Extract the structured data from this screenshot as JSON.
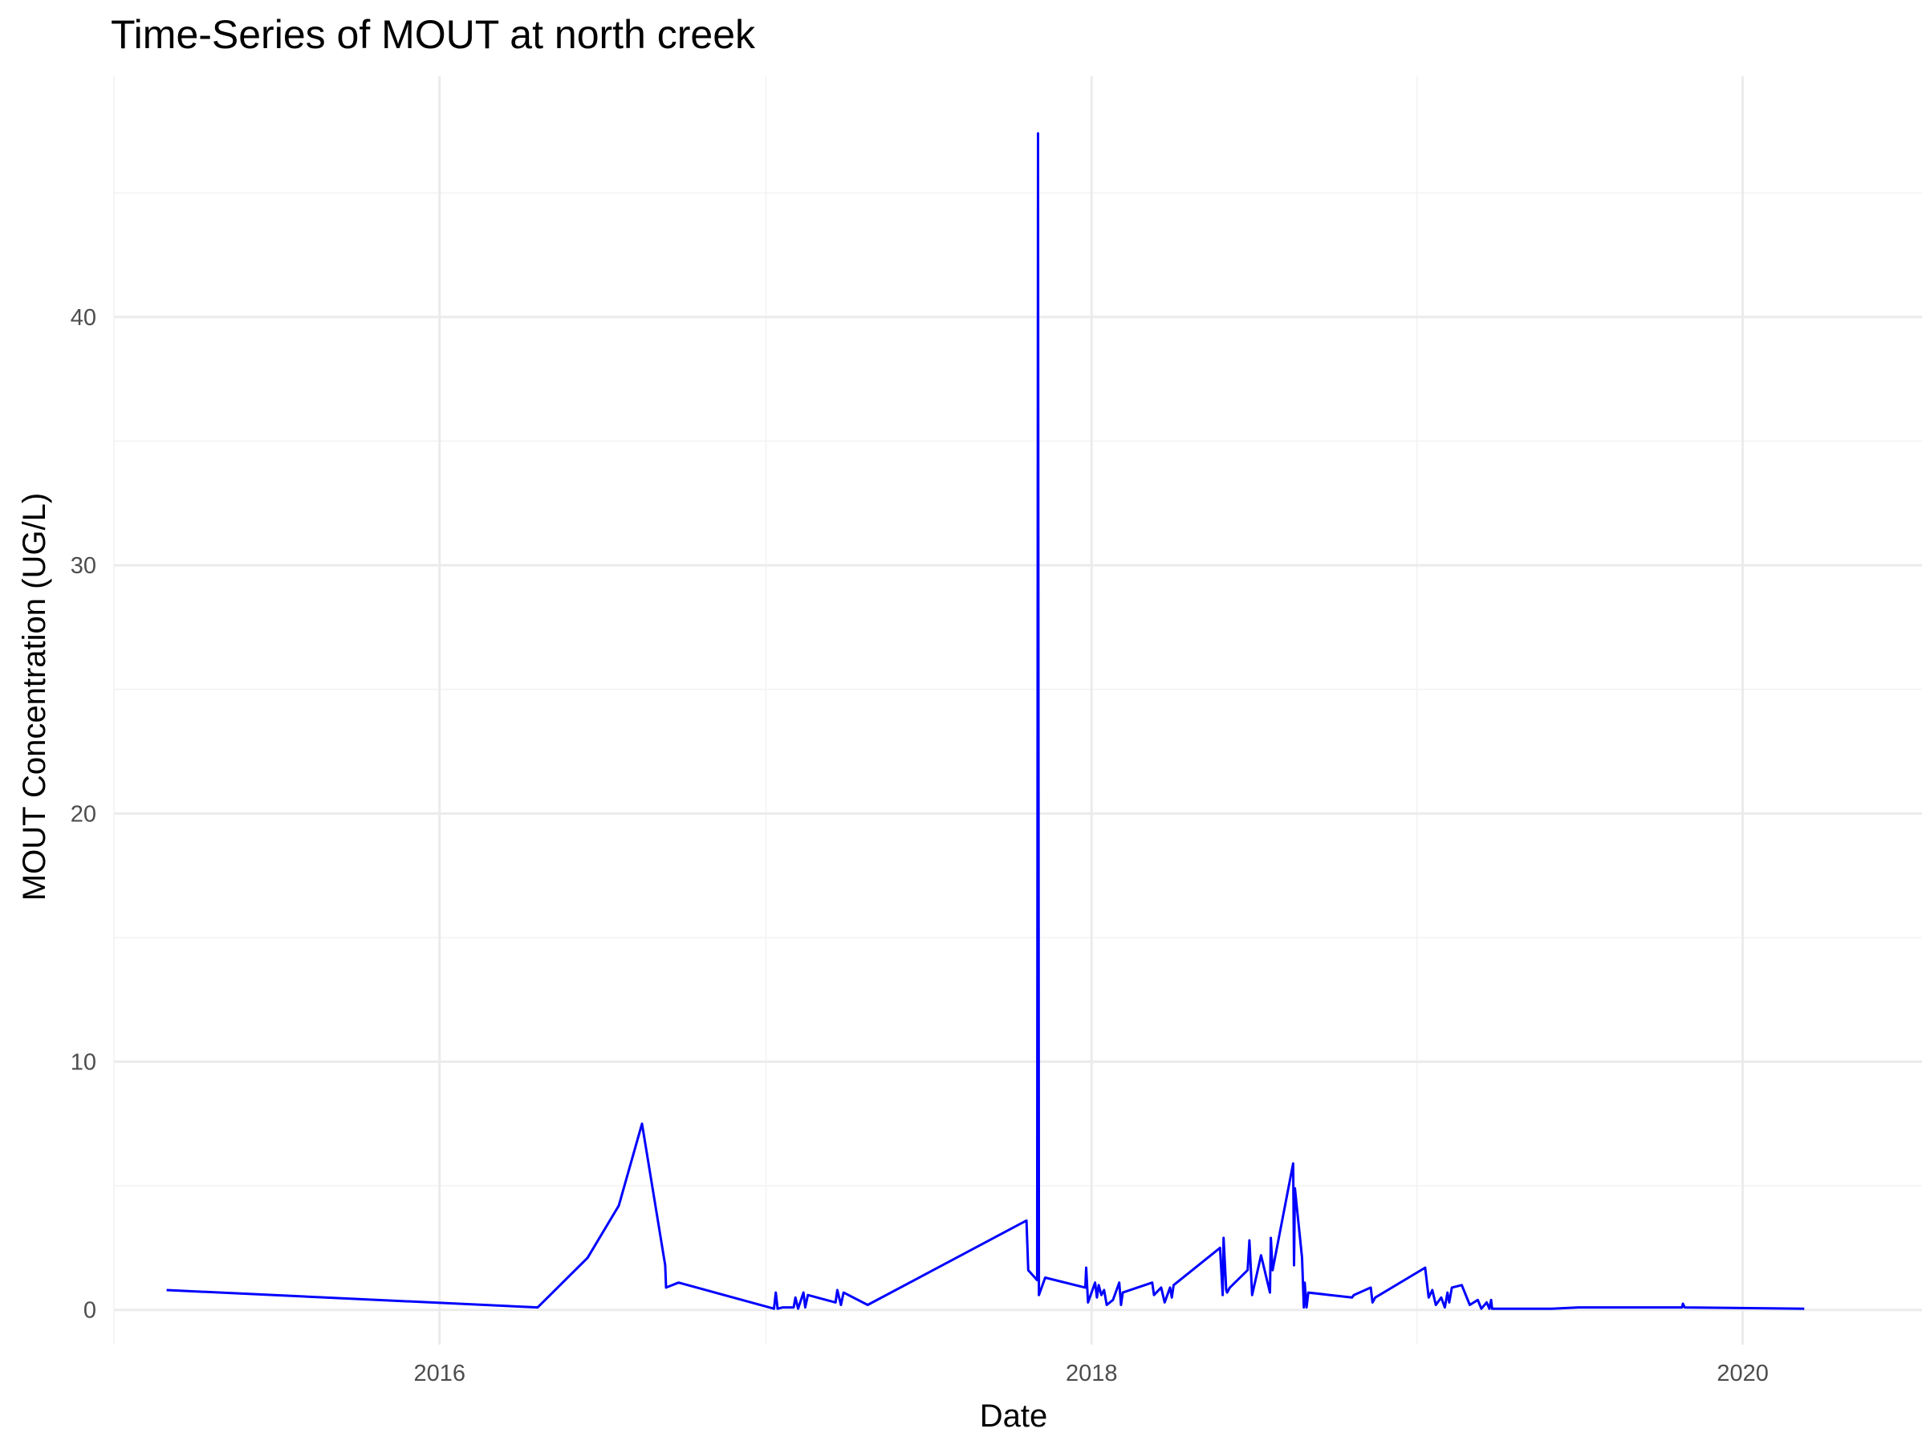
{
  "chart_data": {
    "type": "line",
    "title": "Time-Series of MOUT at north creek",
    "xlabel": "Date",
    "ylabel": "MOUT Concentration (UG/L)",
    "xlim": [
      "2015-01-01",
      "2020-07-20"
    ],
    "ylim": [
      -1.4,
      49.7
    ],
    "x_ticks": [
      "2016",
      "2018",
      "2020"
    ],
    "y_ticks": [
      0,
      10,
      20,
      30,
      40
    ],
    "grid": true,
    "legend": "none",
    "colors": {
      "line": "#0000ff"
    },
    "series": [
      {
        "x": [
          "2015-03-01",
          "2016-04-20",
          "2016-06-15",
          "2016-07-20",
          "2016-08-15",
          "2016-09-10",
          "2016-09-11",
          "2016-09-25",
          "2017-01-10",
          "2017-01-12",
          "2017-01-14",
          "2017-01-20",
          "2017-02-01",
          "2017-02-03",
          "2017-02-06",
          "2017-02-12",
          "2017-02-14",
          "2017-02-17",
          "2017-03-20",
          "2017-03-22",
          "2017-03-26",
          "2017-03-29",
          "2017-04-25",
          "2017-10-20",
          "2017-10-22",
          "2017-11-01",
          "2017-11-02",
          "2017-11-03",
          "2017-11-10",
          "2017-12-25",
          "2017-12-26",
          "2017-12-28",
          "2018-01-05",
          "2018-01-07",
          "2018-01-09",
          "2018-01-12",
          "2018-01-15",
          "2018-01-18",
          "2018-01-25",
          "2018-02-01",
          "2018-02-03",
          "2018-02-05",
          "2018-03-10",
          "2018-03-12",
          "2018-03-20",
          "2018-03-24",
          "2018-03-30",
          "2018-04-01",
          "2018-04-03",
          "2018-05-25",
          "2018-05-28",
          "2018-05-29",
          "2018-06-01",
          "2018-06-02",
          "2018-06-05",
          "2018-06-25",
          "2018-06-27",
          "2018-06-30",
          "2018-07-10",
          "2018-07-20",
          "2018-07-21",
          "2018-07-23",
          "2018-08-15",
          "2018-08-16",
          "2018-08-17",
          "2018-08-25",
          "2018-08-27",
          "2018-08-28",
          "2018-08-30",
          "2018-09-01",
          "2018-10-20",
          "2018-10-22",
          "2018-11-10",
          "2018-11-12",
          "2018-11-15",
          "2019-01-10",
          "2019-01-14",
          "2019-01-18",
          "2019-01-22",
          "2019-01-28",
          "2019-02-01",
          "2019-02-04",
          "2019-02-06",
          "2019-02-09",
          "2019-02-20",
          "2019-03-01",
          "2019-03-10",
          "2019-03-14",
          "2019-03-20",
          "2019-03-23",
          "2019-03-25",
          "2019-03-26",
          "2019-06-01",
          "2019-07-01",
          "2019-10-25",
          "2019-10-26",
          "2019-10-28",
          "2020-03-10"
        ],
        "y": [
          0.8,
          0.1,
          2.1,
          4.2,
          7.5,
          1.8,
          0.9,
          1.1,
          0.05,
          0.7,
          0.05,
          0.1,
          0.1,
          0.5,
          0.05,
          0.7,
          0.1,
          0.6,
          0.3,
          0.8,
          0.2,
          0.7,
          0.2,
          3.6,
          1.6,
          1.2,
          47.4,
          0.6,
          1.3,
          0.9,
          1.7,
          0.3,
          1.1,
          0.5,
          1.0,
          0.6,
          0.8,
          0.2,
          0.4,
          1.1,
          0.2,
          0.7,
          1.1,
          0.6,
          0.9,
          0.3,
          0.9,
          0.5,
          1.0,
          2.5,
          0.6,
          2.9,
          0.8,
          0.7,
          0.9,
          1.6,
          2.8,
          0.6,
          2.2,
          0.7,
          2.9,
          1.6,
          5.9,
          1.8,
          4.9,
          2.1,
          0.1,
          1.1,
          0.1,
          0.7,
          0.5,
          0.6,
          0.9,
          0.3,
          0.5,
          1.7,
          0.5,
          0.8,
          0.2,
          0.5,
          0.1,
          0.7,
          0.3,
          0.9,
          1.0,
          0.2,
          0.4,
          0.05,
          0.3,
          0.05,
          0.4,
          0.05,
          0.05,
          0.1,
          0.1,
          0.25,
          0.1,
          0.05
        ]
      }
    ]
  }
}
